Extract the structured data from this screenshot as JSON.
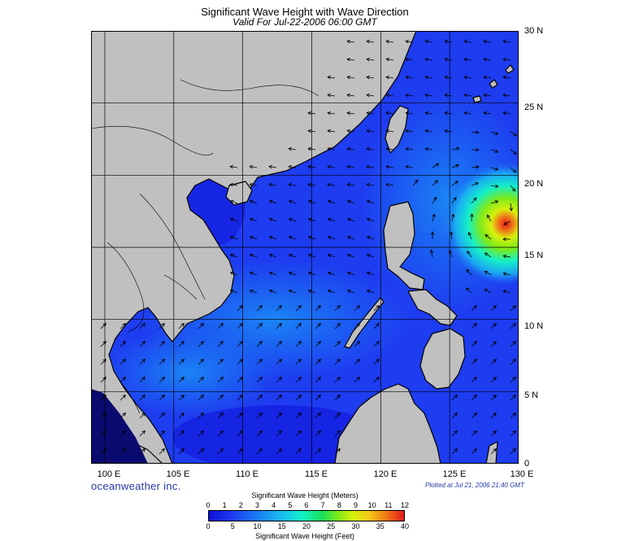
{
  "header": {
    "title": "Significant Wave Height with Wave Direction",
    "subtitle": "Valid For Jul-22-2006 06:00 GMT"
  },
  "map": {
    "lon_range": [
      99,
      130
    ],
    "lat_range": [
      0,
      30
    ],
    "lat_labels": [
      "30 N",
      "25 N",
      "20 N",
      "15 N",
      "10 N",
      "5 N",
      "0"
    ],
    "lon_labels": [
      "100 E",
      "105 E",
      "110 E",
      "115 E",
      "120 E",
      "125 E",
      "130 E"
    ],
    "land_color": "#c0c0c0",
    "sea_colors": [
      "#1010d8",
      "#1e3cf0",
      "#1a7ef5",
      "#19c0f0",
      "#18e05a",
      "#d8f00e",
      "#e01a1a"
    ],
    "storm_center": {
      "lon": 128.5,
      "lat": 17.5
    }
  },
  "footer": {
    "brand": "oceanweather inc.",
    "plotted": "Plotted at Jul 21, 2006 21:40 GMT"
  },
  "colorbar": {
    "title_top": "Significant Wave Height (Meters)",
    "title_bottom": "Significant Wave Height (Feet)",
    "meters": [
      "0",
      "1",
      "2",
      "3",
      "4",
      "5",
      "6",
      "7",
      "8",
      "9",
      "10",
      "11",
      "12"
    ],
    "feet": [
      "0",
      "5",
      "10",
      "15",
      "20",
      "25",
      "30",
      "35",
      "40"
    ]
  }
}
